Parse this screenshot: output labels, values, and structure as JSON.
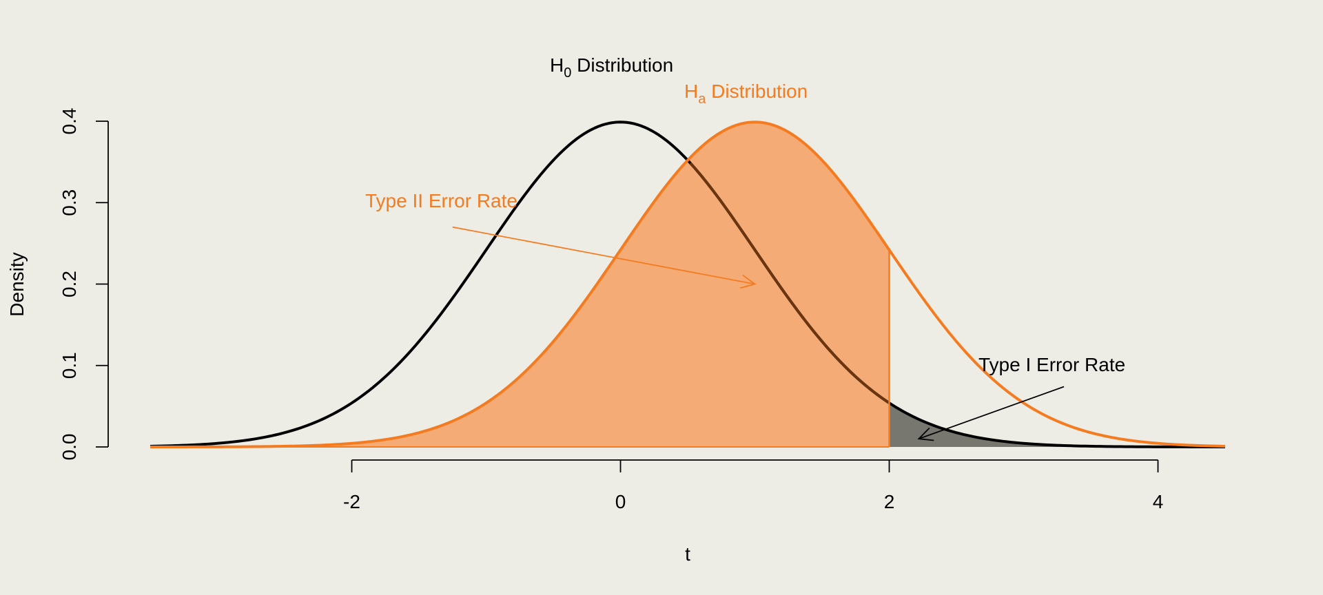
{
  "chart_data": {
    "type": "line",
    "title": "",
    "xlabel": "t",
    "ylabel": "Density",
    "xlim": [
      -3.5,
      4.5
    ],
    "ylim": [
      0,
      0.4
    ],
    "xticks": [
      -2,
      0,
      2,
      4
    ],
    "yticks": [
      0.0,
      0.1,
      0.2,
      0.3,
      0.4
    ],
    "xtick_labels": [
      "-2",
      "0",
      "2",
      "4"
    ],
    "ytick_labels": [
      "0.0",
      "0.1",
      "0.2",
      "0.3",
      "0.4"
    ],
    "critical_value": 2,
    "series": [
      {
        "label_main": "H",
        "label_sub": "0",
        "label_rest": " Distribution",
        "mean": 0,
        "sd": 1,
        "color": "#000000"
      },
      {
        "label_main": "H",
        "label_sub": "a",
        "label_rest": " Distribution",
        "mean": 1,
        "sd": 1,
        "color": "#f47b20"
      }
    ],
    "shaded_regions": [
      {
        "name": "type-ii-region",
        "distribution_mean": 1,
        "from": -3.5,
        "to": 2,
        "color": "#f5ab75"
      },
      {
        "name": "type-i-region",
        "distribution_mean": 0,
        "from": 2,
        "to": 4.5,
        "color": "#777770"
      }
    ],
    "annotations": [
      {
        "name": "type-ii-label",
        "text": "Type II Error Rate",
        "color": "#f47b20",
        "arrow_from": [
          -1.25,
          0.27
        ],
        "arrow_to": [
          1,
          0.2
        ]
      },
      {
        "name": "type-i-label",
        "text": "Type I Error Rate",
        "color": "#000000",
        "arrow_from": [
          3.3,
          0.074
        ],
        "arrow_to": [
          2.22,
          0.01
        ]
      }
    ],
    "grid": false,
    "legend": "none"
  }
}
